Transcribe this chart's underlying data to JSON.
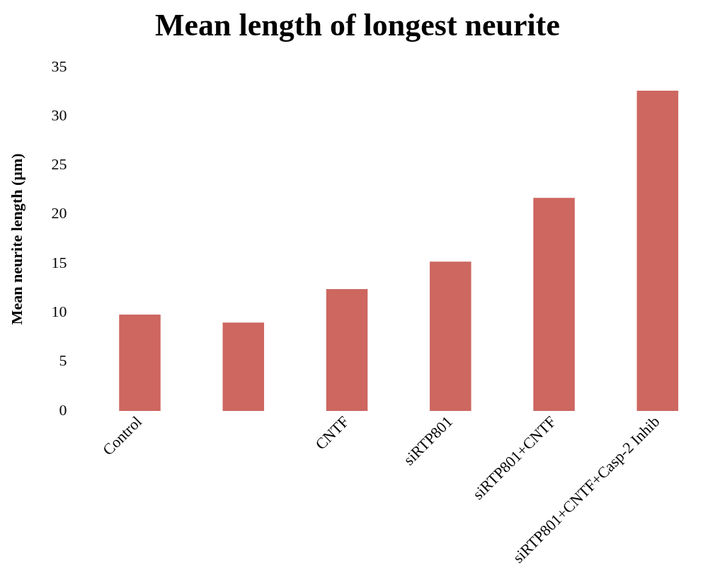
{
  "chart_data": {
    "type": "bar",
    "title": "Mean length of longest neurite",
    "ylabel": "Mean neurite length (µm)",
    "categories": [
      "Control",
      null,
      "CNTF",
      "siRTP801",
      "siRTP801+CNTF",
      "siRTP801+CNTF+Casp-2 Inhib"
    ],
    "values": [
      9.8,
      9.0,
      12.4,
      15.2,
      21.7,
      32.6
    ],
    "color": "#cd6760",
    "ylim": [
      0,
      35
    ],
    "yticks": [
      0,
      5,
      10,
      15,
      20,
      25,
      30,
      35
    ],
    "grid": false,
    "legend": false
  }
}
